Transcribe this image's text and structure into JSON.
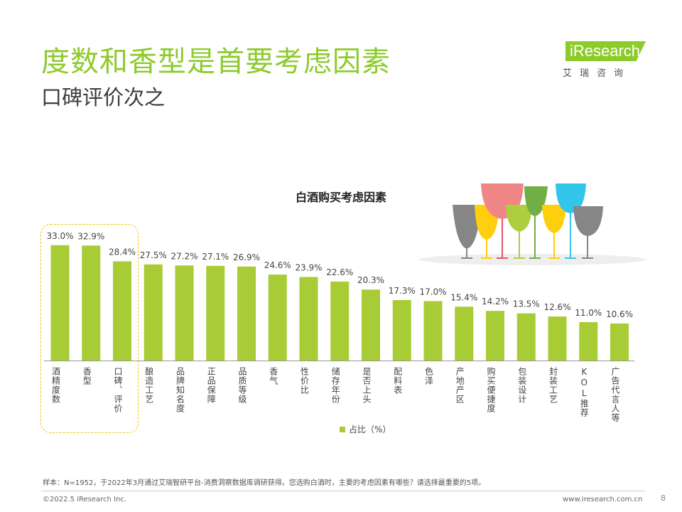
{
  "header": {
    "title": "度数和香型是首要考虑因素",
    "subtitle": "口碑评价次之"
  },
  "logo": {
    "brand": "iResearch",
    "cn": "艾瑞咨询"
  },
  "chart_data": {
    "type": "bar",
    "title": "白酒购买考虑因素",
    "categories": [
      "酒精度数",
      "香型",
      "口碑、评价",
      "酿造工艺",
      "品牌知名度",
      "正品保障",
      "品质等级",
      "香气",
      "性价比",
      "储存年份",
      "是否上头",
      "配料表",
      "色泽",
      "产地产区",
      "购买便捷度",
      "包装设计",
      "封装工艺",
      "KOL推荐",
      "广告代言人等"
    ],
    "values": [
      33.0,
      32.9,
      28.4,
      27.5,
      27.2,
      27.1,
      26.9,
      24.6,
      23.9,
      22.6,
      20.3,
      17.3,
      17.0,
      15.4,
      14.2,
      13.5,
      12.6,
      11.0,
      10.6
    ],
    "value_labels": [
      "33.0%",
      "32.9%",
      "28.4%",
      "27.5%",
      "27.2%",
      "27.1%",
      "26.9%",
      "24.6%",
      "23.9%",
      "22.6%",
      "20.3%",
      "17.3%",
      "17.0%",
      "15.4%",
      "14.2%",
      "13.5%",
      "12.6%",
      "11.0%",
      "10.6%"
    ],
    "series_name": "占比（%）",
    "bar_color": "#a8cc35",
    "ylim": [
      0,
      35
    ],
    "legend_position": "bottom-center",
    "highlighted_categories": [
      "酒精度数",
      "香型",
      "口碑、评价"
    ]
  },
  "footer": {
    "note": "样本：N=1952，于2022年3月通过艾瑞智研平台-消费洞察数据库调研获得。您选购白酒时，主要的考虑因素有哪些？请选择最重要的5项。",
    "copyright": "©2022.5 iResearch Inc.",
    "website": "www.iresearch.com.cn",
    "page": "8"
  },
  "colors": {
    "accent": "#8ccb2a",
    "highlight_border": "#f2c200"
  }
}
